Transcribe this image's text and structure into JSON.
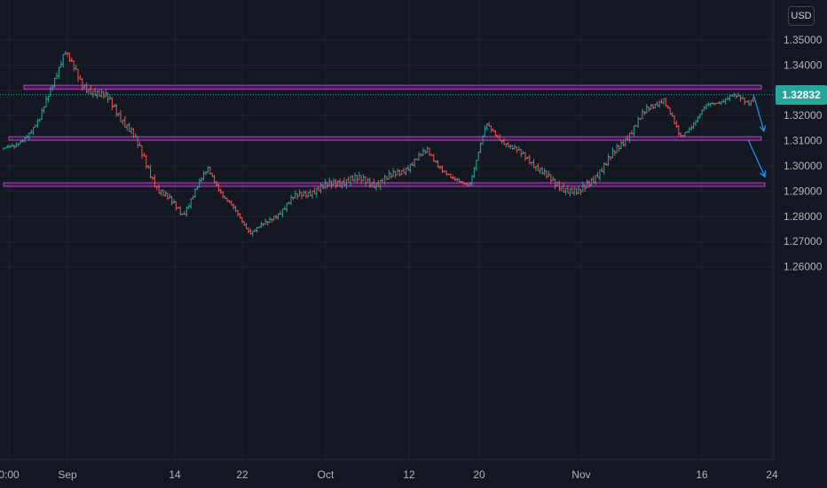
{
  "currency_button": "USD",
  "colors": {
    "background": "#131722",
    "grid": "#1f2330",
    "axis_text": "#b2b5be",
    "up": "#26a69a",
    "down": "#ef5350",
    "zone_fill": "rgba(156,39,176,0.30)",
    "zone_border": "#ab47bc",
    "arrow": "#2196f3",
    "price_line": "#26a69a"
  },
  "chart_data": {
    "type": "ohlc_bar",
    "symbol_currency": "USD",
    "y_ticks": [
      "1.35000",
      "1.34000",
      "1.33000",
      "1.32000",
      "1.31000",
      "1.30000",
      "1.29000",
      "1.28000",
      "1.27000",
      "1.26000"
    ],
    "x_ticks": [
      "0:00",
      "Sep",
      "14",
      "22",
      "Oct",
      "12",
      "20",
      "Nov",
      "16",
      "24"
    ],
    "ylim": [
      1.2595,
      1.3557
    ],
    "last_price": "1.32832",
    "approx_close_path": [
      {
        "x": "Aug 26",
        "y": 1.307
      },
      {
        "x": "Aug 29",
        "y": 1.318
      },
      {
        "x": "Sep 1",
        "y": 1.346
      },
      {
        "x": "Sep 3",
        "y": 1.332
      },
      {
        "x": "Sep 6",
        "y": 1.327
      },
      {
        "x": "Sep 9",
        "y": 1.313
      },
      {
        "x": "Sep 12",
        "y": 1.291
      },
      {
        "x": "Sep 15",
        "y": 1.281
      },
      {
        "x": "Sep 18",
        "y": 1.299
      },
      {
        "x": "Sep 20",
        "y": 1.287
      },
      {
        "x": "Sep 23",
        "y": 1.274
      },
      {
        "x": "Sep 25",
        "y": 1.277
      },
      {
        "x": "Sep 28",
        "y": 1.287
      },
      {
        "x": "Oct 1",
        "y": 1.291
      },
      {
        "x": "Oct 5",
        "y": 1.295
      },
      {
        "x": "Oct 8",
        "y": 1.293
      },
      {
        "x": "Oct 11",
        "y": 1.298
      },
      {
        "x": "Oct 14",
        "y": 1.306
      },
      {
        "x": "Oct 17",
        "y": 1.294
      },
      {
        "x": "Oct 19",
        "y": 1.293
      },
      {
        "x": "Oct 21",
        "y": 1.316
      },
      {
        "x": "Oct 24",
        "y": 1.307
      },
      {
        "x": "Oct 26",
        "y": 1.303
      },
      {
        "x": "Oct 29",
        "y": 1.293
      },
      {
        "x": "Nov 1",
        "y": 1.289
      },
      {
        "x": "Nov 4",
        "y": 1.3
      },
      {
        "x": "Nov 7",
        "y": 1.313
      },
      {
        "x": "Nov 9",
        "y": 1.322
      },
      {
        "x": "Nov 11",
        "y": 1.327
      },
      {
        "x": "Nov 13",
        "y": 1.311
      },
      {
        "x": "Nov 16",
        "y": 1.323
      },
      {
        "x": "Nov 19",
        "y": 1.328
      },
      {
        "x": "Nov 21",
        "y": 1.325
      },
      {
        "x": "Nov 22",
        "y": 1.328
      }
    ],
    "zones": [
      {
        "low": 1.3305,
        "high": 1.332
      },
      {
        "low": 1.3102,
        "high": 1.3116
      },
      {
        "low": 1.292,
        "high": 1.2933
      }
    ],
    "projection": [
      {
        "from_x": "Nov 22",
        "from_y": 1.3285,
        "to_x": "Nov 23",
        "to_y": 1.3138
      },
      {
        "from_x": "Nov 22",
        "from_y": 1.3105,
        "to_x": "Nov 23",
        "to_y": 1.2957
      }
    ]
  }
}
